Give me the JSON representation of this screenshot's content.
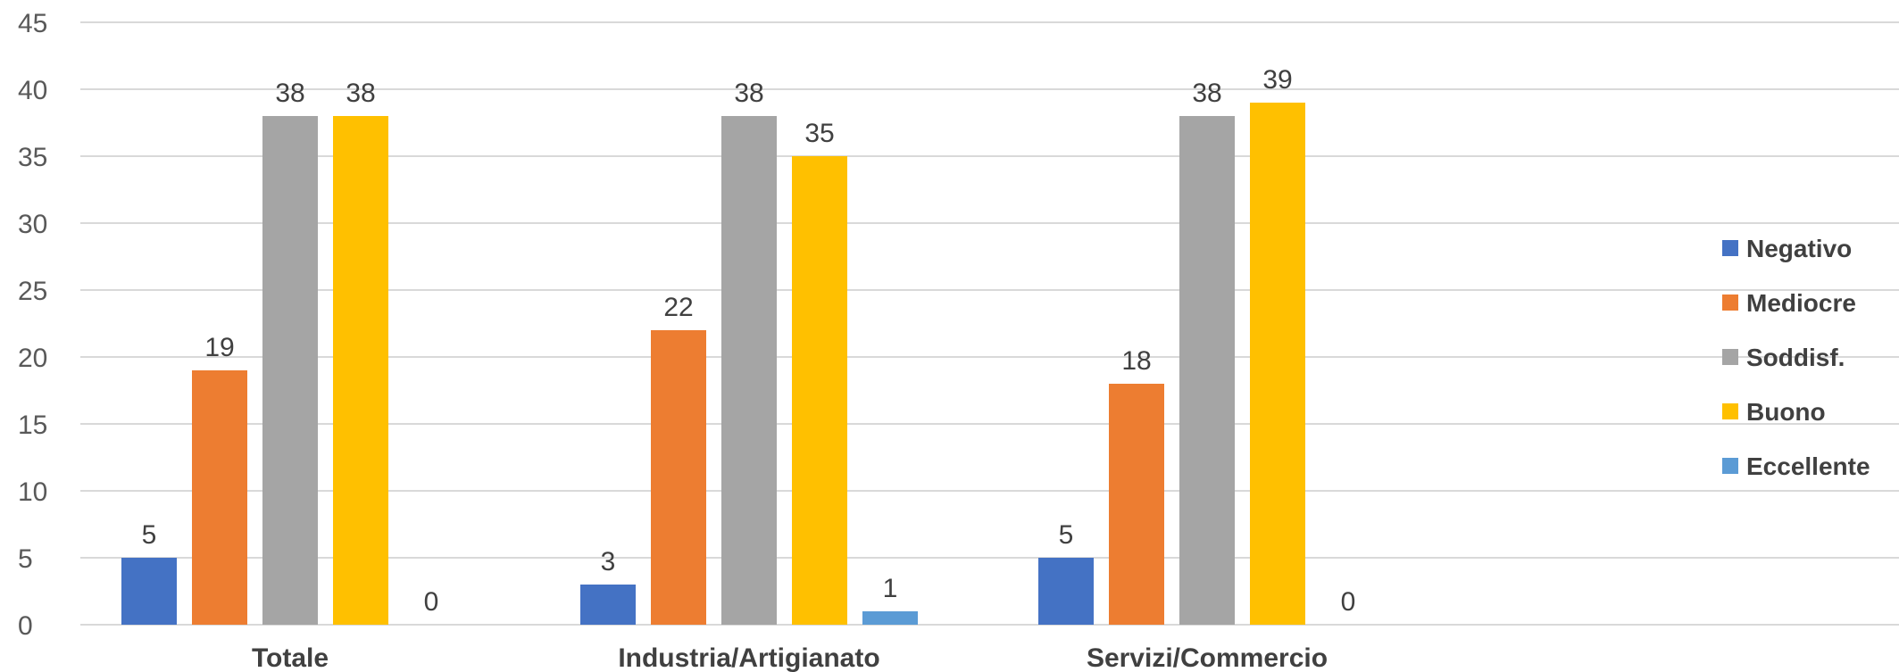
{
  "chart_data": {
    "type": "bar",
    "title": "",
    "xlabel": "",
    "ylabel": "",
    "ylim": [
      0,
      45
    ],
    "yticks": [
      0,
      5,
      10,
      15,
      20,
      25,
      30,
      35,
      40,
      45
    ],
    "grid": true,
    "legend_position": "right",
    "categories": [
      "Totale",
      "Industria/Artigianato",
      "Servizi/Commercio"
    ],
    "series": [
      {
        "name": "Negativo",
        "color": "#4472c4",
        "values": [
          5,
          3,
          5
        ]
      },
      {
        "name": "Mediocre",
        "color": "#ed7d31",
        "values": [
          19,
          22,
          18
        ]
      },
      {
        "name": "Soddisf.",
        "color": "#a5a5a5",
        "values": [
          38,
          38,
          38
        ]
      },
      {
        "name": "Buono",
        "color": "#ffc000",
        "values": [
          38,
          35,
          39
        ]
      },
      {
        "name": "Eccellente",
        "color": "#5b9bd5",
        "values": [
          0,
          1,
          0
        ]
      }
    ]
  }
}
